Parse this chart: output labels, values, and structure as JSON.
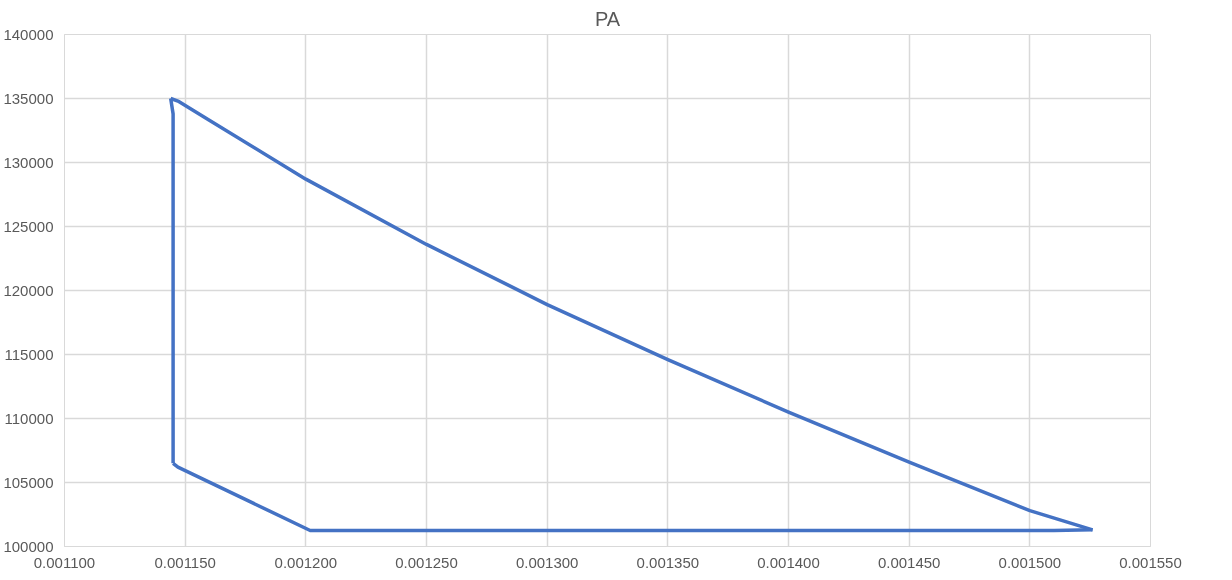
{
  "chart_data": {
    "type": "line",
    "title": "PA",
    "series": [
      {
        "color": "#4472c4",
        "x": [
          0.001144,
          0.001147,
          0.00116,
          0.0012,
          0.00125,
          0.0013,
          0.00135,
          0.0014,
          0.00145,
          0.0015,
          0.001526
        ],
        "values": [
          135000,
          134800,
          133300,
          128700,
          123600,
          118900,
          114600,
          110500,
          106600,
          102800,
          101300
        ]
      },
      {
        "color": "#4472c4",
        "x": [
          0.001145,
          0.001147,
          0.0012018,
          0.00151,
          0.001526
        ],
        "values": [
          106500,
          106200,
          101250,
          101250,
          101300
        ]
      },
      {
        "color": "#4472c4",
        "x": [
          0.001144,
          0.001145,
          0.001145
        ],
        "values": [
          135000,
          133800,
          106500
        ]
      }
    ],
    "xlim": [
      0.0011,
      0.00155
    ],
    "xticks": [
      {
        "value": 0.0011,
        "label": "0.001100"
      },
      {
        "value": 0.00115,
        "label": "0.001150"
      },
      {
        "value": 0.0012,
        "label": "0.001200"
      },
      {
        "value": 0.00125,
        "label": "0.001250"
      },
      {
        "value": 0.0013,
        "label": "0.001300"
      },
      {
        "value": 0.00135,
        "label": "0.001350"
      },
      {
        "value": 0.0014,
        "label": "0.001400"
      },
      {
        "value": 0.00145,
        "label": "0.001450"
      },
      {
        "value": 0.0015,
        "label": "0.001500"
      },
      {
        "value": 0.00155,
        "label": "0.001550"
      }
    ],
    "ylim": [
      100000,
      140000
    ],
    "yticks": [
      100000,
      105000,
      110000,
      115000,
      120000,
      125000,
      130000,
      135000,
      140000
    ],
    "grid": true,
    "marker": "none",
    "line_style": "solid"
  }
}
